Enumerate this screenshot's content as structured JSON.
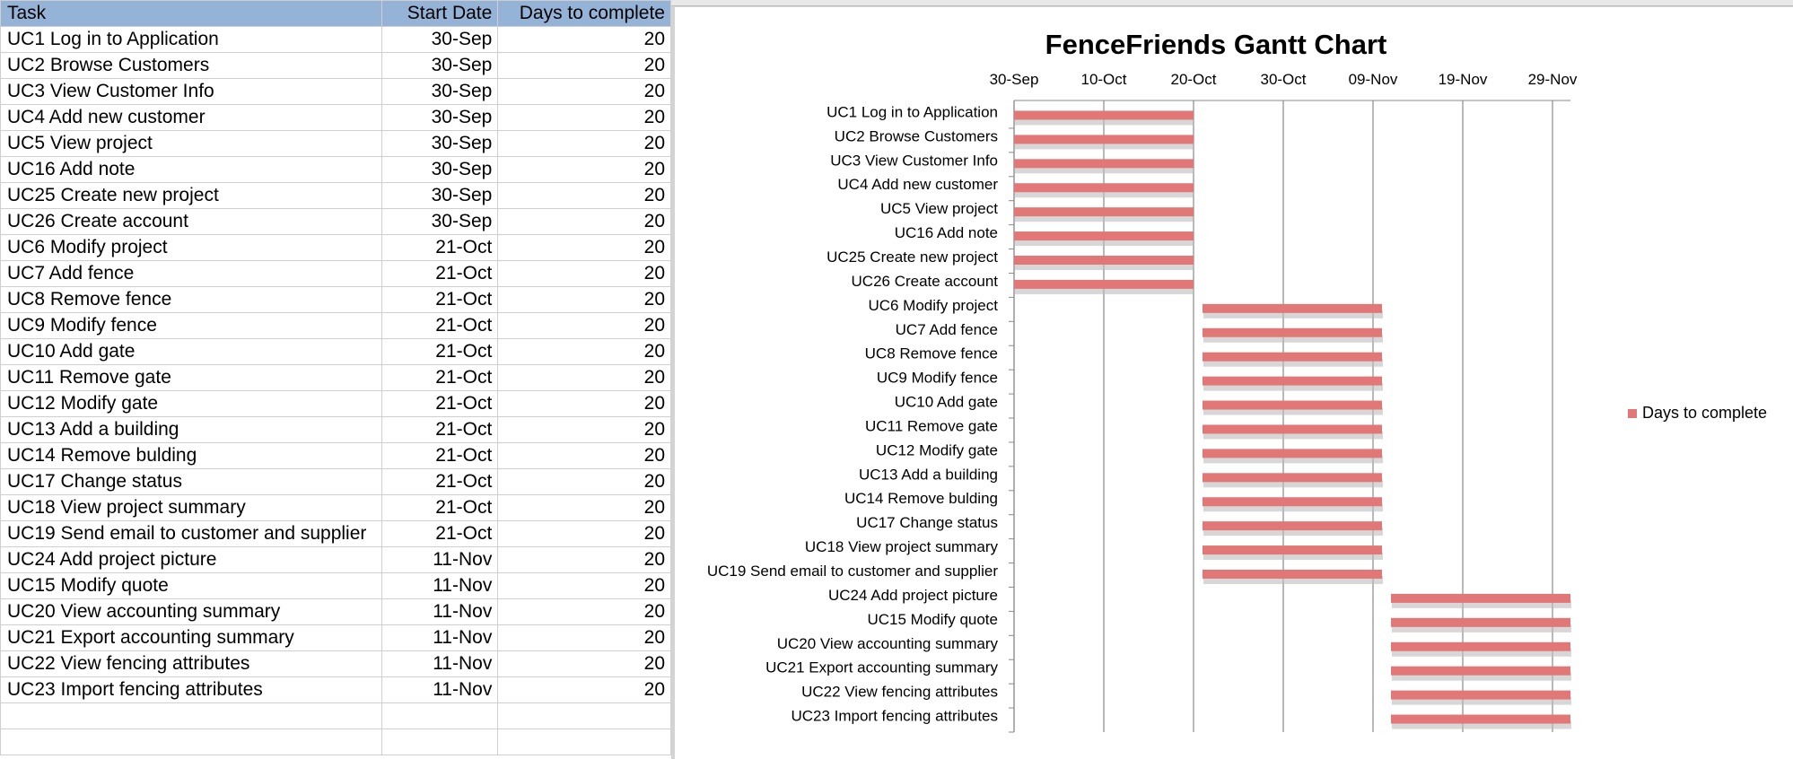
{
  "sheet": {
    "headers": [
      "Task",
      "Start Date",
      "Days to complete"
    ],
    "rows": [
      [
        "UC1 Log in to Application",
        "30-Sep",
        "20"
      ],
      [
        "UC2 Browse Customers",
        "30-Sep",
        "20"
      ],
      [
        "UC3 View Customer Info",
        "30-Sep",
        "20"
      ],
      [
        "UC4 Add new customer",
        "30-Sep",
        "20"
      ],
      [
        "UC5 View project",
        "30-Sep",
        "20"
      ],
      [
        "UC16 Add note",
        "30-Sep",
        "20"
      ],
      [
        "UC25 Create new project",
        "30-Sep",
        "20"
      ],
      [
        "UC26 Create account",
        "30-Sep",
        "20"
      ],
      [
        "UC6 Modify project",
        "21-Oct",
        "20"
      ],
      [
        "UC7 Add fence",
        "21-Oct",
        "20"
      ],
      [
        "UC8 Remove fence",
        "21-Oct",
        "20"
      ],
      [
        "UC9 Modify fence",
        "21-Oct",
        "20"
      ],
      [
        "UC10 Add gate",
        "21-Oct",
        "20"
      ],
      [
        "UC11 Remove gate",
        "21-Oct",
        "20"
      ],
      [
        "UC12 Modify gate",
        "21-Oct",
        "20"
      ],
      [
        "UC13 Add a building",
        "21-Oct",
        "20"
      ],
      [
        "UC14 Remove bulding",
        "21-Oct",
        "20"
      ],
      [
        "UC17 Change status",
        "21-Oct",
        "20"
      ],
      [
        "UC18 View project summary",
        "21-Oct",
        "20"
      ],
      [
        "UC19 Send email to customer and supplier",
        "21-Oct",
        "20"
      ],
      [
        "UC24 Add project picture",
        "11-Nov",
        "20"
      ],
      [
        "UC15 Modify quote",
        "11-Nov",
        "20"
      ],
      [
        "UC20 View accounting summary",
        "11-Nov",
        "20"
      ],
      [
        "UC21 Export accounting summary",
        "11-Nov",
        "20"
      ],
      [
        "UC22 View fencing attributes",
        "11-Nov",
        "20"
      ],
      [
        "UC23 Import fencing attributes",
        "11-Nov",
        "20"
      ]
    ]
  },
  "chart_data": {
    "type": "bar",
    "orientation": "horizontal",
    "stacked": true,
    "title": "FenceFriends Gantt Chart",
    "x_ticks": [
      "30-Sep",
      "10-Oct",
      "20-Oct",
      "30-Oct",
      "09-Nov",
      "19-Nov",
      "29-Nov"
    ],
    "x_tick_offsets_days": [
      0,
      10,
      20,
      30,
      40,
      50,
      60
    ],
    "xlim_days": [
      0,
      62
    ],
    "x_axis_position": "top",
    "grid": "vertical",
    "categories": [
      "UC1 Log in to Application",
      "UC2 Browse Customers",
      "UC3 View Customer Info",
      "UC4 Add new customer",
      "UC5 View project",
      "UC16 Add note",
      "UC25 Create new project",
      "UC26 Create account",
      "UC6 Modify project",
      "UC7 Add fence",
      "UC8 Remove fence",
      "UC9 Modify fence",
      "UC10 Add gate",
      "UC11 Remove gate",
      "UC12 Modify gate",
      "UC13 Add a building",
      "UC14 Remove bulding",
      "UC17 Change status",
      "UC18 View project summary",
      "UC19 Send email to customer and supplier",
      "UC24 Add project picture",
      "UC15 Modify quote",
      "UC20 View accounting summary",
      "UC21 Export accounting summary",
      "UC22 View fencing attributes",
      "UC23 Import fencing attributes"
    ],
    "series": [
      {
        "name": "Start Date",
        "hidden": true,
        "values": [
          "30-Sep",
          "30-Sep",
          "30-Sep",
          "30-Sep",
          "30-Sep",
          "30-Sep",
          "30-Sep",
          "30-Sep",
          "21-Oct",
          "21-Oct",
          "21-Oct",
          "21-Oct",
          "21-Oct",
          "21-Oct",
          "21-Oct",
          "21-Oct",
          "21-Oct",
          "21-Oct",
          "21-Oct",
          "21-Oct",
          "11-Nov",
          "11-Nov",
          "11-Nov",
          "11-Nov",
          "11-Nov",
          "11-Nov"
        ]
      },
      {
        "name": "Days to complete",
        "color": "#e27777",
        "values": [
          20,
          20,
          20,
          20,
          20,
          20,
          20,
          20,
          20,
          20,
          20,
          20,
          20,
          20,
          20,
          20,
          20,
          20,
          20,
          20,
          20,
          20,
          20,
          20,
          20,
          20
        ]
      }
    ],
    "start_offsets_days": [
      0,
      0,
      0,
      0,
      0,
      0,
      0,
      0,
      21,
      21,
      21,
      21,
      21,
      21,
      21,
      21,
      21,
      21,
      21,
      21,
      42,
      42,
      42,
      42,
      42,
      42
    ],
    "legend": {
      "position": "right",
      "label": "Days to complete"
    }
  }
}
